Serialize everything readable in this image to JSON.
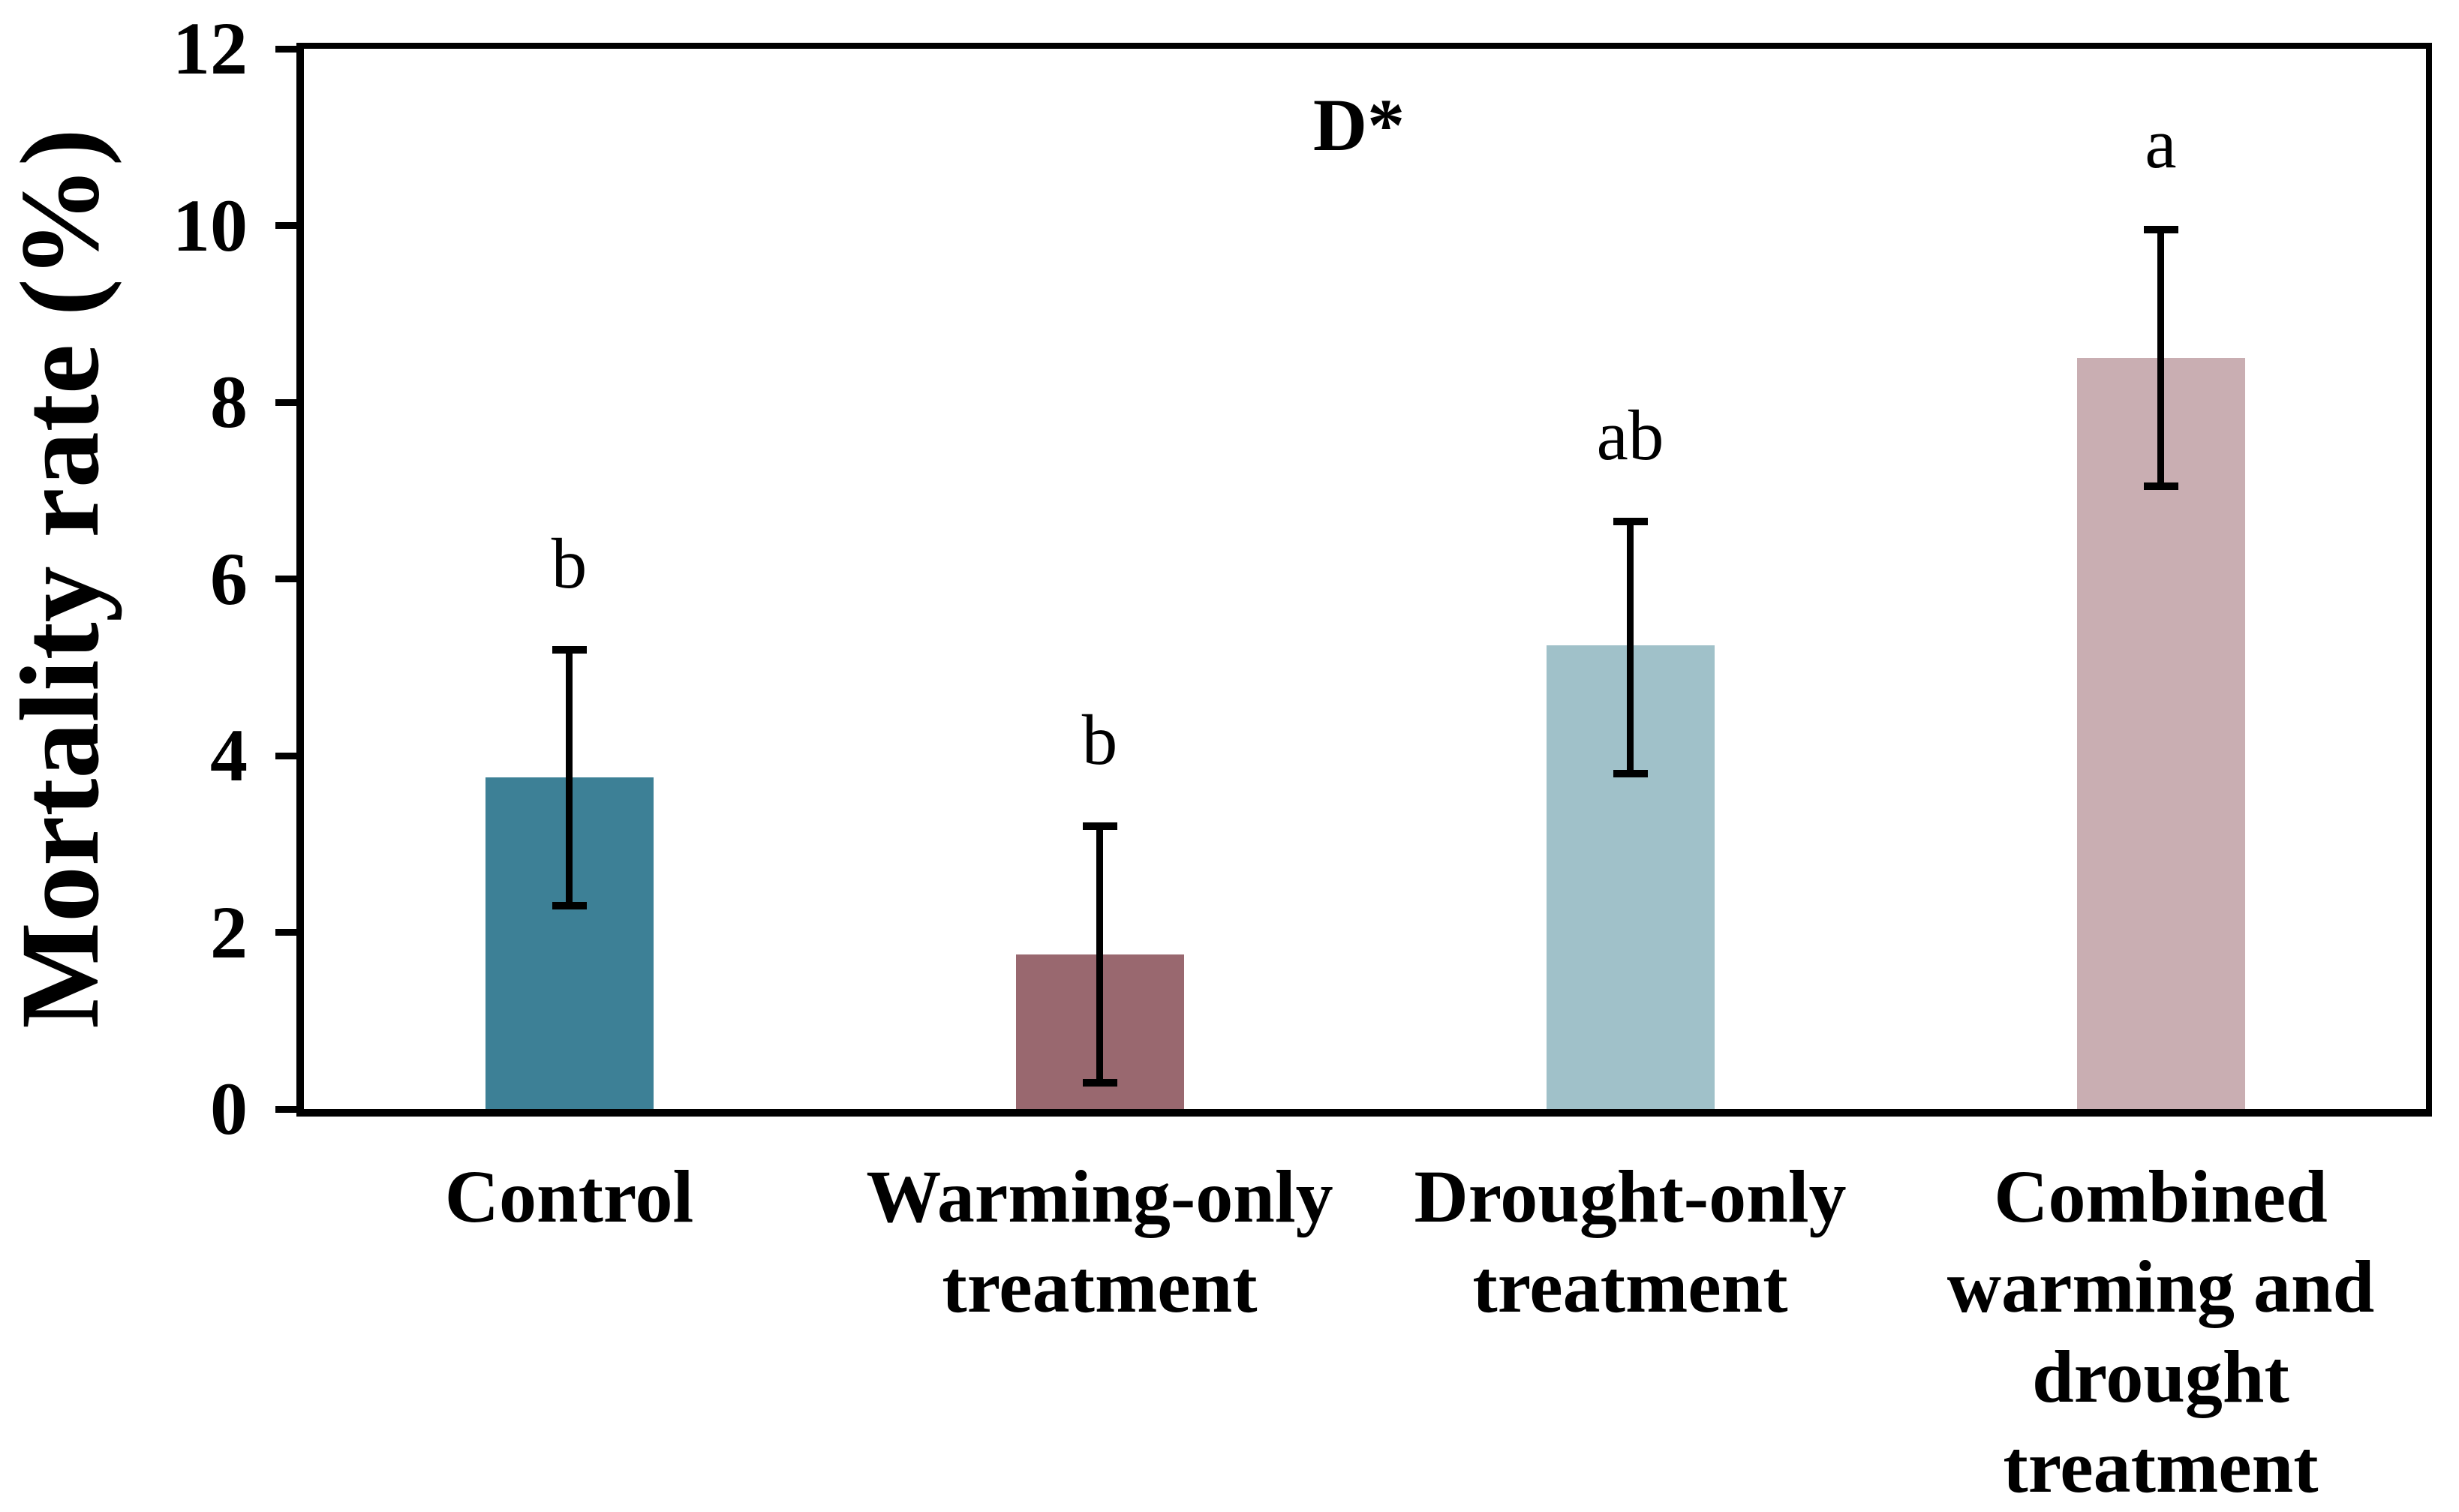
{
  "figure": {
    "background": "#FFFFFF",
    "axis_color": "#000000"
  },
  "chart_data": {
    "type": "bar",
    "title": "",
    "ylabel": "Mortality rate (%)",
    "xlabel": "",
    "annotation": "D*",
    "ylim": [
      0,
      12
    ],
    "yticks": [
      "0",
      "2",
      "4",
      "6",
      "8",
      "10",
      "12"
    ],
    "ytick_values": [
      0,
      2,
      4,
      6,
      8,
      10,
      12
    ],
    "grid": false,
    "legend_position": "none",
    "categories": [
      "Control",
      "Warming-only\ntreatment",
      "Drought-only\ntreatment",
      "Combined\nwarming and\ndrought\ntreatment"
    ],
    "series": [
      {
        "name": "Mortality rate",
        "values": [
          3.75,
          1.75,
          5.25,
          8.5
        ],
        "error_low": [
          2.3,
          0.3,
          3.8,
          7.05
        ],
        "error_high": [
          5.2,
          3.2,
          6.65,
          9.95
        ],
        "colors": [
          "#3D8096",
          "#99686F",
          "#A0C1C9",
          "#C9AEB2"
        ]
      }
    ],
    "sig_letters": [
      "b",
      "b",
      "ab",
      "a"
    ]
  }
}
